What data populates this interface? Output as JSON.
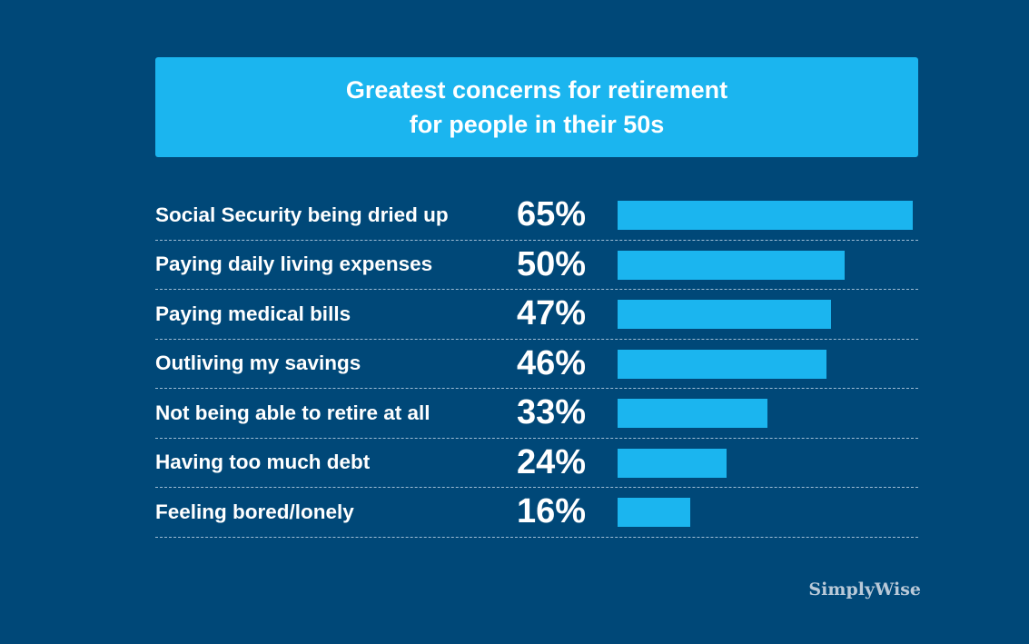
{
  "chart_data": {
    "type": "bar",
    "orientation": "horizontal",
    "title_lines": [
      "Greatest concerns for retirement",
      "for people in their 50s"
    ],
    "categories": [
      "Social Security being dried up",
      "Paying daily living expenses",
      "Paying medical bills",
      "Outliving my savings",
      "Not being able to retire at all",
      "Having too much debt",
      "Feeling bored/lonely"
    ],
    "values": [
      65,
      50,
      47,
      46,
      33,
      24,
      16
    ],
    "value_labels": [
      "65%",
      "50%",
      "47%",
      "46%",
      "33%",
      "24%",
      "16%"
    ],
    "unit": "%",
    "xlim": [
      0,
      65
    ]
  },
  "brand": "SimplyWise",
  "colors": {
    "background": "#004878",
    "accent": "#1bb5ef",
    "text": "#ffffff",
    "brand": "#b9c9d8"
  }
}
